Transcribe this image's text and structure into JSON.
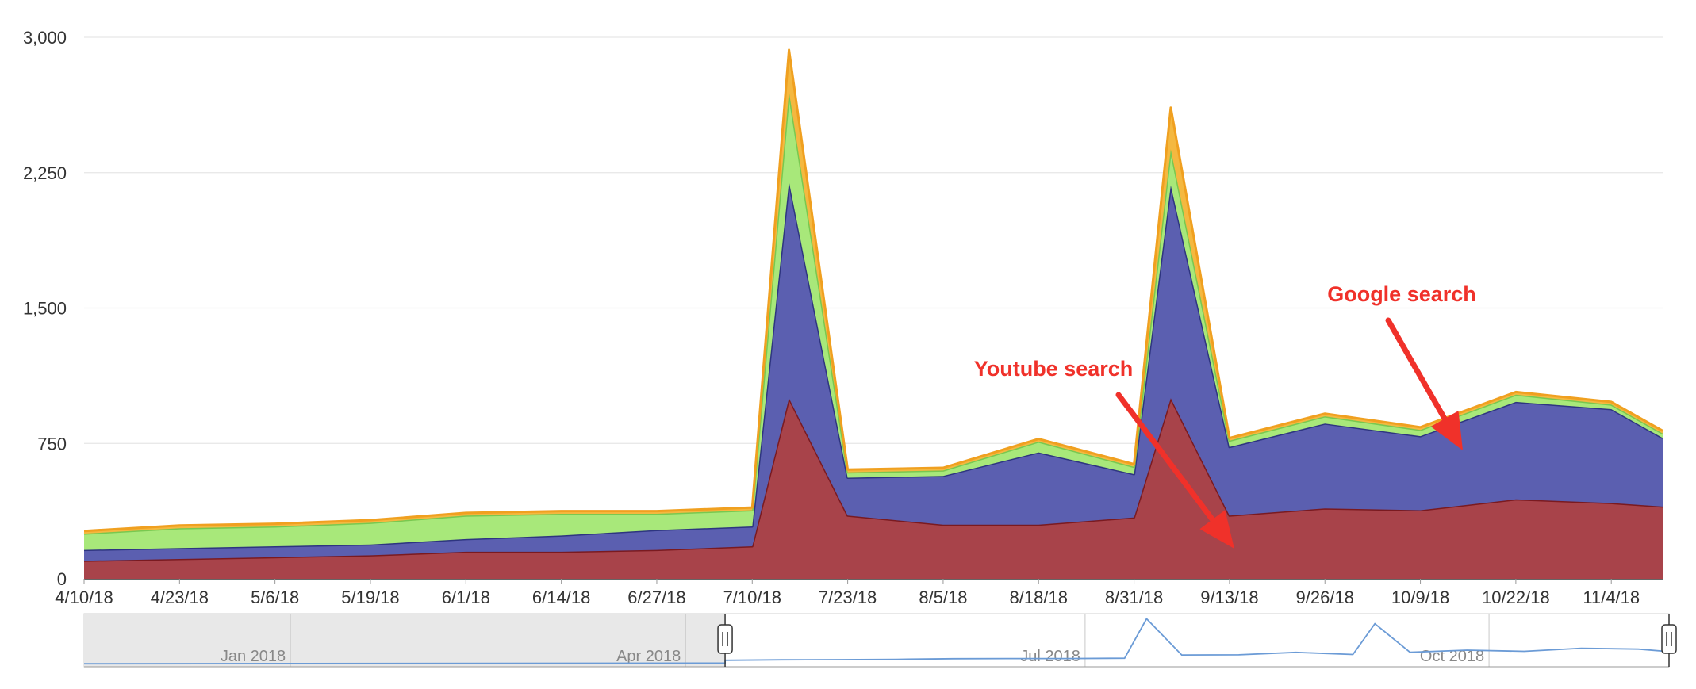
{
  "chart_data": {
    "type": "area",
    "stacked": true,
    "x": [
      "4/10/18",
      "4/23/18",
      "5/6/18",
      "5/19/18",
      "6/1/18",
      "6/14/18",
      "6/27/18",
      "7/10/18",
      "7/15/18",
      "7/23/18",
      "8/5/18",
      "8/18/18",
      "8/31/18",
      "9/5/18",
      "9/13/18",
      "9/26/18",
      "10/9/18",
      "10/22/18",
      "11/4/18",
      "11/11/18"
    ],
    "series": [
      {
        "color": "#a8434a",
        "stroke": "#7a1a20",
        "values": [
          100,
          110,
          120,
          130,
          150,
          150,
          160,
          180,
          1000,
          350,
          300,
          300,
          340,
          1000,
          350,
          390,
          380,
          440,
          420,
          400
        ]
      },
      {
        "color": "#5b5fb0",
        "stroke": "#2e3580",
        "values": [
          60,
          60,
          60,
          60,
          70,
          90,
          110,
          110,
          1200,
          210,
          270,
          400,
          240,
          1180,
          380,
          470,
          410,
          540,
          520,
          380
        ]
      },
      {
        "color": "#a8e87a",
        "stroke": "#78c850",
        "values": [
          90,
          110,
          110,
          120,
          130,
          120,
          90,
          90,
          500,
          30,
          30,
          60,
          40,
          200,
          35,
          40,
          35,
          40,
          25,
          25
        ]
      },
      {
        "color": "#f4b840",
        "stroke": "#f0a020",
        "values": [
          15,
          15,
          15,
          15,
          15,
          15,
          15,
          15,
          230,
          15,
          15,
          15,
          15,
          230,
          15,
          15,
          15,
          15,
          15,
          15
        ]
      }
    ],
    "ylim": [
      0,
      3000
    ],
    "y_ticks": [
      "0",
      "750",
      "1,500",
      "2,250",
      "3,000"
    ],
    "x_ticks": [
      "4/10/18",
      "4/23/18",
      "5/6/18",
      "5/19/18",
      "6/1/18",
      "6/14/18",
      "6/27/18",
      "7/10/18",
      "7/23/18",
      "8/5/18",
      "8/18/18",
      "8/31/18",
      "9/13/18",
      "9/26/18",
      "10/9/18",
      "10/22/18",
      "11/4/18"
    ],
    "grid": true,
    "annotations": [
      {
        "text": "Youtube search",
        "color": "#f0312a"
      },
      {
        "text": "Google search",
        "color": "#f0312a"
      }
    ],
    "navigator": {
      "labels": [
        "Jan 2018",
        "Apr 2018",
        "Jul 2018",
        "Oct 2018"
      ],
      "selected_range": [
        "4/10/18",
        "11/11/18"
      ],
      "line_color": "#6b9bd6"
    }
  }
}
